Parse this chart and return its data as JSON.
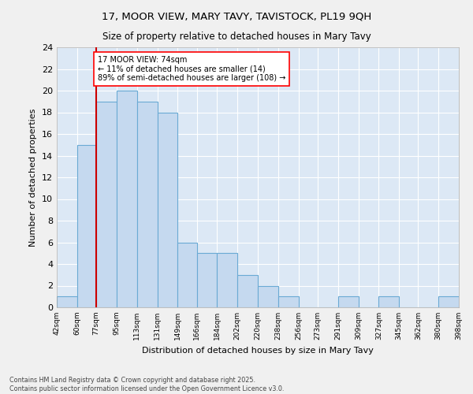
{
  "title": "17, MOOR VIEW, MARY TAVY, TAVISTOCK, PL19 9QH",
  "subtitle": "Size of property relative to detached houses in Mary Tavy",
  "xlabel": "Distribution of detached houses by size in Mary Tavy",
  "ylabel": "Number of detached properties",
  "bins": [
    42,
    60,
    77,
    95,
    113,
    131,
    149,
    166,
    184,
    202,
    220,
    238,
    256,
    273,
    291,
    309,
    327,
    345,
    362,
    380,
    398
  ],
  "counts": [
    1,
    15,
    19,
    20,
    19,
    18,
    6,
    5,
    5,
    3,
    2,
    1,
    0,
    0,
    1,
    0,
    1,
    0,
    0,
    1,
    0
  ],
  "bar_color": "#c5d9ef",
  "bar_edge_color": "#6aaad4",
  "ylim": [
    0,
    24
  ],
  "yticks": [
    0,
    2,
    4,
    6,
    8,
    10,
    12,
    14,
    16,
    18,
    20,
    22,
    24
  ],
  "vline_x": 77,
  "vline_color": "#cc0000",
  "annotation_text": "17 MOOR VIEW: 74sqm\n← 11% of detached houses are smaller (14)\n89% of semi-detached houses are larger (108) →",
  "bg_color": "#dce8f5",
  "fig_bg_color": "#f0f0f0",
  "grid_color": "#ffffff",
  "footer": "Contains HM Land Registry data © Crown copyright and database right 2025.\nContains public sector information licensed under the Open Government Licence v3.0.",
  "tick_labels": [
    "42sqm",
    "60sqm",
    "77sqm",
    "95sqm",
    "113sqm",
    "131sqm",
    "149sqm",
    "166sqm",
    "184sqm",
    "202sqm",
    "220sqm",
    "238sqm",
    "256sqm",
    "273sqm",
    "291sqm",
    "309sqm",
    "327sqm",
    "345sqm",
    "362sqm",
    "380sqm",
    "398sqm"
  ]
}
